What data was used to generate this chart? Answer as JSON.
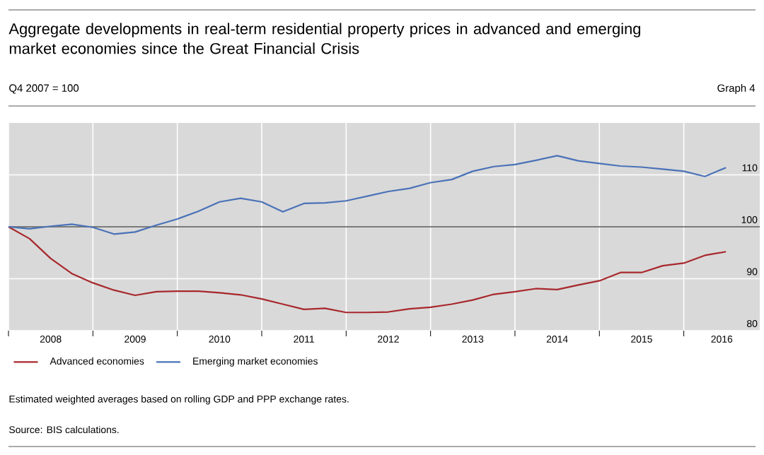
{
  "chart_data": {
    "type": "line",
    "title": "Aggregate developments in real-term residential property prices in advanced and emerging market economies since the Great Financial Crisis",
    "subtitle": "Q4 2007 = 100",
    "annotations": [
      "Graph 4",
      "Estimated weighted averages based on rolling GDP and PPP exchange rates.",
      "Source: BIS calculations."
    ],
    "x": [
      2008,
      2008.25,
      2008.5,
      2008.75,
      2009,
      2009.25,
      2009.5,
      2009.75,
      2010,
      2010.25,
      2010.5,
      2010.75,
      2011,
      2011.25,
      2011.5,
      2011.75,
      2012,
      2012.25,
      2012.5,
      2012.75,
      2013,
      2013.25,
      2013.5,
      2013.75,
      2014,
      2014.25,
      2014.5,
      2014.75,
      2015,
      2015.25,
      2015.5,
      2015.75,
      2016,
      2016.25,
      2016.5
    ],
    "series": [
      {
        "name": "Advanced economies",
        "color": "#a8282c",
        "values": [
          100,
          97.7,
          93.9,
          91,
          89.2,
          87.8,
          86.8,
          87.5,
          87.6,
          87.6,
          87.3,
          86.9,
          86.1,
          85.1,
          84.1,
          84.3,
          83.5,
          83.5,
          83.6,
          84.2,
          84.5,
          85.1,
          85.9,
          87,
          87.5,
          88.1,
          87.9,
          88.8,
          89.6,
          91.2,
          91.2,
          92.5,
          93,
          94.5,
          95.2
        ]
      },
      {
        "name": "Emerging market economies",
        "color": "#4a72b8",
        "values": [
          100,
          99.6,
          100.1,
          100.5,
          99.9,
          98.6,
          99,
          100.3,
          101.5,
          103,
          104.8,
          105.5,
          104.8,
          102.9,
          104.5,
          104.6,
          105,
          105.9,
          106.8,
          107.4,
          108.5,
          109.1,
          110.7,
          111.6,
          112,
          112.8,
          113.7,
          112.7,
          112.2,
          111.7,
          111.5,
          111.1,
          110.7,
          109.7,
          111.4
        ]
      }
    ],
    "xlim": [
      2008,
      2016.9
    ],
    "xticks": [
      {
        "value": 2008,
        "label": null
      },
      {
        "value": 2009,
        "label": null
      },
      {
        "value": 2010,
        "label": null
      },
      {
        "value": 2011,
        "label": null
      },
      {
        "value": 2012,
        "label": null
      },
      {
        "value": 2013,
        "label": null
      },
      {
        "value": 2014,
        "label": null
      },
      {
        "value": 2015,
        "label": null
      },
      {
        "value": 2016,
        "label": null
      },
      {
        "value": 2008.5,
        "label": "2008"
      },
      {
        "value": 2009.5,
        "label": "2009"
      },
      {
        "value": 2010.5,
        "label": "2010"
      },
      {
        "value": 2011.5,
        "label": "2011"
      },
      {
        "value": 2012.5,
        "label": "2012"
      },
      {
        "value": 2013.5,
        "label": "2013"
      },
      {
        "value": 2014.5,
        "label": "2014"
      },
      {
        "value": 2015.5,
        "label": "2015"
      },
      {
        "value": 2016.45,
        "label": "2016"
      }
    ],
    "ylim": [
      80,
      120
    ],
    "yticks": [
      80,
      90,
      100,
      110
    ],
    "ref_lines": [
      {
        "axis": "y",
        "value": 100,
        "color": "#000000"
      }
    ],
    "grid": true,
    "legend": "bottom",
    "marker": "none",
    "line_style": "solid"
  }
}
